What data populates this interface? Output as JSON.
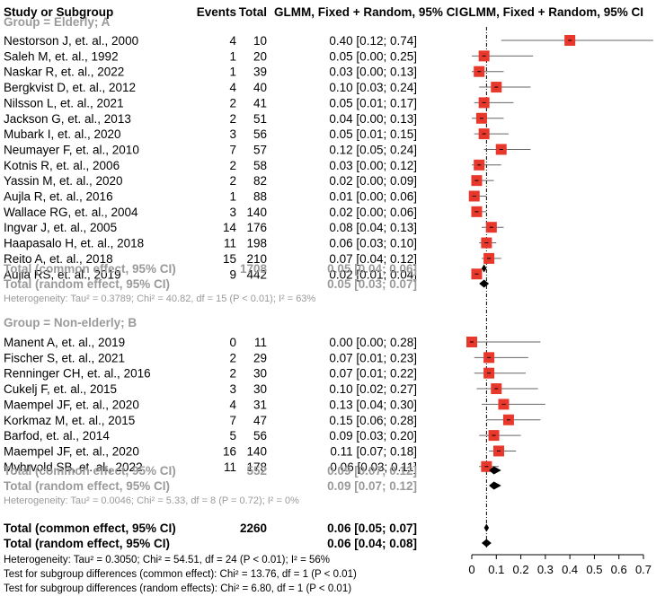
{
  "headers": {
    "study": "Study or Subgroup",
    "events": "Events",
    "total": "Total",
    "ci": "GLMM, Fixed + Random, 95% CI",
    "plot": "GLMM, Fixed + Random, 95% CI"
  },
  "chart_data": {
    "type": "forest",
    "xlim": [
      0,
      0.7
    ],
    "ticks": [
      0,
      0.1,
      0.2,
      0.3,
      0.4,
      0.5,
      0.6,
      0.7
    ],
    "tick_labels": [
      "0",
      "0.1",
      "0.2",
      "0.3",
      "0.4",
      "0.5",
      "0.6",
      "0.7"
    ],
    "overall_reference_line": 0.06,
    "colors": {
      "square": "#e8382c",
      "ci_line": "#666666",
      "subtotal_text": "#9a9a9a",
      "diamond": "#000000"
    },
    "groups": [
      {
        "title": "Group = Elderly; A",
        "studies": [
          {
            "name": "Nestorson J, et. al., 2000",
            "events": "4",
            "total": "10",
            "ci": "0.40 [0.12; 0.74]",
            "est": 0.4,
            "lo": 0.12,
            "hi": 0.74
          },
          {
            "name": "Saleh M, et. al., 1992",
            "events": "1",
            "total": "20",
            "ci": "0.05 [0.00; 0.25]",
            "est": 0.05,
            "lo": 0.0,
            "hi": 0.25
          },
          {
            "name": "Naskar R, et. al., 2022",
            "events": "1",
            "total": "39",
            "ci": "0.03 [0.00; 0.13]",
            "est": 0.03,
            "lo": 0.0,
            "hi": 0.13
          },
          {
            "name": "Bergkvist D, et. al., 2012",
            "events": "4",
            "total": "40",
            "ci": "0.10 [0.03; 0.24]",
            "est": 0.1,
            "lo": 0.03,
            "hi": 0.24
          },
          {
            "name": "Nilsson L, et. al., 2021",
            "events": "2",
            "total": "41",
            "ci": "0.05 [0.01; 0.17]",
            "est": 0.05,
            "lo": 0.01,
            "hi": 0.17
          },
          {
            "name": "Jackson G, et. al., 2013",
            "events": "2",
            "total": "51",
            "ci": "0.04 [0.00; 0.13]",
            "est": 0.04,
            "lo": 0.0,
            "hi": 0.13
          },
          {
            "name": "Mubark I, et. al., 2020",
            "events": "3",
            "total": "56",
            "ci": "0.05 [0.01; 0.15]",
            "est": 0.05,
            "lo": 0.01,
            "hi": 0.15
          },
          {
            "name": "Neumayer F, et. al., 2010",
            "events": "7",
            "total": "57",
            "ci": "0.12 [0.05; 0.24]",
            "est": 0.12,
            "lo": 0.05,
            "hi": 0.24
          },
          {
            "name": "Kotnis R, et. al., 2006",
            "events": "2",
            "total": "58",
            "ci": "0.03 [0.00; 0.12]",
            "est": 0.03,
            "lo": 0.0,
            "hi": 0.12
          },
          {
            "name": "Yassin M, et. al., 2020",
            "events": "2",
            "total": "82",
            "ci": "0.02 [0.00; 0.09]",
            "est": 0.02,
            "lo": 0.0,
            "hi": 0.09
          },
          {
            "name": "Aujla R, et. al., 2016",
            "events": "1",
            "total": "88",
            "ci": "0.01 [0.00; 0.06]",
            "est": 0.01,
            "lo": 0.0,
            "hi": 0.06
          },
          {
            "name": "Wallace RG, et. al., 2004",
            "events": "3",
            "total": "140",
            "ci": "0.02 [0.00; 0.06]",
            "est": 0.02,
            "lo": 0.0,
            "hi": 0.06
          },
          {
            "name": "Ingvar J, et. al., 2005",
            "events": "14",
            "total": "176",
            "ci": "0.08 [0.04; 0.13]",
            "est": 0.08,
            "lo": 0.04,
            "hi": 0.13
          },
          {
            "name": "Haapasalo H, et. al., 2018",
            "events": "11",
            "total": "198",
            "ci": "0.06 [0.03; 0.10]",
            "est": 0.06,
            "lo": 0.03,
            "hi": 0.1
          },
          {
            "name": "Reito A, et. al., 2018",
            "events": "15",
            "total": "210",
            "ci": "0.07 [0.04; 0.12]",
            "est": 0.07,
            "lo": 0.04,
            "hi": 0.12
          },
          {
            "name": "Aujla RS, et. al., 2019",
            "events": "9",
            "total": "442",
            "ci": "0.02 [0.01; 0.04]",
            "est": 0.02,
            "lo": 0.01,
            "hi": 0.04
          }
        ],
        "common": {
          "label": "Total (common effect, 95% CI)",
          "total": "1708",
          "ci": "0.05 [0.04; 0.06]",
          "est": 0.05,
          "lo": 0.04,
          "hi": 0.06
        },
        "random": {
          "label": "Total (random effect, 95% CI)",
          "total": "",
          "ci": "0.05 [0.03; 0.07]",
          "est": 0.05,
          "lo": 0.03,
          "hi": 0.07
        },
        "heterogeneity": "Heterogeneity: Tau² = 0.3789; Chi² = 40.82, df = 15 (P < 0.01); I² = 63%"
      },
      {
        "title": "Group = Non-elderly; B",
        "studies": [
          {
            "name": "Manent A, et. al., 2019",
            "events": "0",
            "total": "11",
            "ci": "0.00 [0.00; 0.28]",
            "est": 0.0,
            "lo": 0.0,
            "hi": 0.28
          },
          {
            "name": "Fischer S, et. al., 2021",
            "events": "2",
            "total": "29",
            "ci": "0.07 [0.01; 0.23]",
            "est": 0.07,
            "lo": 0.01,
            "hi": 0.23
          },
          {
            "name": "Renninger CH, et. al., 2016",
            "events": "2",
            "total": "30",
            "ci": "0.07 [0.01; 0.22]",
            "est": 0.07,
            "lo": 0.01,
            "hi": 0.22
          },
          {
            "name": "Cukelj F, et. al., 2015",
            "events": "3",
            "total": "30",
            "ci": "0.10 [0.02; 0.27]",
            "est": 0.1,
            "lo": 0.02,
            "hi": 0.27
          },
          {
            "name": "Maempel JF, et. al., 2020",
            "events": "4",
            "total": "31",
            "ci": "0.13 [0.04; 0.30]",
            "est": 0.13,
            "lo": 0.04,
            "hi": 0.3
          },
          {
            "name": "Korkmaz M, et. al., 2015",
            "events": "7",
            "total": "47",
            "ci": "0.15 [0.06; 0.28]",
            "est": 0.15,
            "lo": 0.06,
            "hi": 0.28
          },
          {
            "name": "Barfod, et. al., 2014",
            "events": "5",
            "total": "56",
            "ci": "0.09 [0.03; 0.20]",
            "est": 0.09,
            "lo": 0.03,
            "hi": 0.2
          },
          {
            "name": "Maempel JF, et. al., 2020",
            "events": "16",
            "total": "140",
            "ci": "0.11 [0.07; 0.18]",
            "est": 0.11,
            "lo": 0.07,
            "hi": 0.18
          },
          {
            "name": "Myhrvold SB, et. al., 2022",
            "events": "11",
            "total": "178",
            "ci": "0.06 [0.03; 0.11]",
            "est": 0.06,
            "lo": 0.03,
            "hi": 0.11
          }
        ],
        "common": {
          "label": "Total (common effect, 95% CI)",
          "total": "552",
          "ci": "0.09 [0.07; 0.12]",
          "est": 0.09,
          "lo": 0.07,
          "hi": 0.12
        },
        "random": {
          "label": "Total (random effect, 95% CI)",
          "total": "",
          "ci": "0.09 [0.07; 0.12]",
          "est": 0.09,
          "lo": 0.07,
          "hi": 0.12
        },
        "heterogeneity": "Heterogeneity: Tau² = 0.0046; Chi² = 5.33, df = 8 (P = 0.72); I² = 0%"
      }
    ],
    "overall": {
      "common": {
        "label": "Total (common effect, 95% CI)",
        "total": "2260",
        "ci": "0.06 [0.05; 0.07]",
        "est": 0.06,
        "lo": 0.05,
        "hi": 0.07
      },
      "random": {
        "label": "Total (random effect, 95% CI)",
        "total": "",
        "ci": "0.06 [0.04; 0.08]",
        "est": 0.06,
        "lo": 0.04,
        "hi": 0.08
      },
      "heterogeneity": "Heterogeneity: Tau² = 0.3050; Chi² = 54.51, df = 24 (P < 0.01); I² = 56%",
      "subgroup_common": "Test for subgroup differences (common effect): Chi² = 13.76, df = 1 (P < 0.01)",
      "subgroup_random": "Test for subgroup differences (random effects): Chi² = 6.80, df = 1 (P < 0.01)"
    }
  }
}
